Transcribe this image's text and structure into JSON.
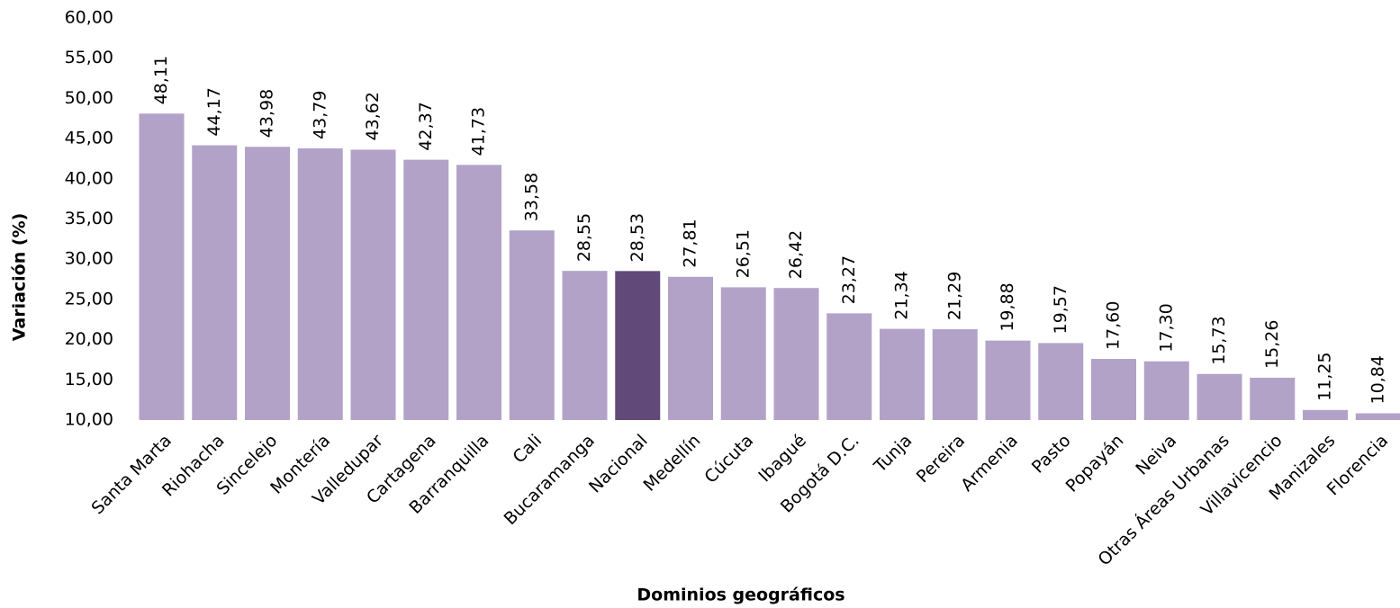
{
  "chart_data": {
    "type": "bar",
    "xlabel": "Dominios geográficos",
    "ylabel": "Variación (%)",
    "categories": [
      "Santa Marta",
      "Riohacha",
      "Sincelejo",
      "Montería",
      "Valledupar",
      "Cartagena",
      "Barranquilla",
      "Cali",
      "Bucaramanga",
      "Nacional",
      "Medellín",
      "Cúcuta",
      "Ibagué",
      "Bogotá D.C.",
      "Tunja",
      "Pereira",
      "Armenia",
      "Pasto",
      "Popayán",
      "Neiva",
      "Otras Áreas Urbanas",
      "Villavicencio",
      "Manizales",
      "Florencia"
    ],
    "values": [
      48.11,
      44.17,
      43.98,
      43.79,
      43.62,
      42.37,
      41.73,
      33.58,
      28.55,
      28.53,
      27.81,
      26.51,
      26.42,
      23.27,
      21.34,
      21.29,
      19.88,
      19.57,
      17.6,
      17.3,
      15.73,
      15.26,
      11.25,
      10.84
    ],
    "value_labels": [
      "48,11",
      "44,17",
      "43,98",
      "43,79",
      "43,62",
      "42,37",
      "41,73",
      "33,58",
      "28,55",
      "28,53",
      "27,81",
      "26,51",
      "26,42",
      "23,27",
      "21,34",
      "21,29",
      "19,88",
      "19,57",
      "17,60",
      "17,30",
      "15,73",
      "15,26",
      "11,25",
      "10,84"
    ],
    "colors": [
      "#b3a2c8",
      "#b3a2c8",
      "#b3a2c8",
      "#b3a2c8",
      "#b3a2c8",
      "#b3a2c8",
      "#b3a2c8",
      "#b3a2c8",
      "#b3a2c8",
      "#614a7a",
      "#b3a2c8",
      "#b3a2c8",
      "#b3a2c8",
      "#b3a2c8",
      "#b3a2c8",
      "#b3a2c8",
      "#b3a2c8",
      "#b3a2c8",
      "#b3a2c8",
      "#b3a2c8",
      "#b3a2c8",
      "#b3a2c8",
      "#b3a2c8",
      "#b3a2c8"
    ],
    "ylim": [
      10,
      60
    ],
    "yticks": [
      {
        "value": 10,
        "label": "10,00"
      },
      {
        "value": 15,
        "label": "15,00"
      },
      {
        "value": 20,
        "label": "20,00"
      },
      {
        "value": 25,
        "label": "25,00"
      },
      {
        "value": 30,
        "label": "30,00"
      },
      {
        "value": 35,
        "label": "35,00"
      },
      {
        "value": 40,
        "label": "40,00"
      },
      {
        "value": 45,
        "label": "45,00"
      },
      {
        "value": 50,
        "label": "50,00"
      },
      {
        "value": 55,
        "label": "55,00"
      },
      {
        "value": 60,
        "label": "60,00"
      }
    ],
    "grid": false
  }
}
